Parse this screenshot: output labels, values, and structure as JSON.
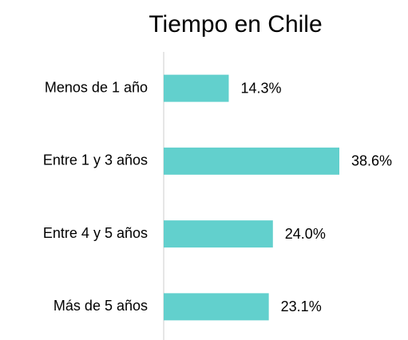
{
  "chart_data": {
    "type": "barh",
    "title": "Tiempo en Chile",
    "categories": [
      "Menos de 1 año",
      "Entre 1 y 3 años",
      "Entre 4 y 5 años",
      "Más de 5 años"
    ],
    "values": [
      14.3,
      38.6,
      24.0,
      23.1
    ],
    "value_labels": [
      "14.3%",
      "38.6%",
      "24.0%",
      "23.1%"
    ],
    "color": "#62d0cd"
  }
}
